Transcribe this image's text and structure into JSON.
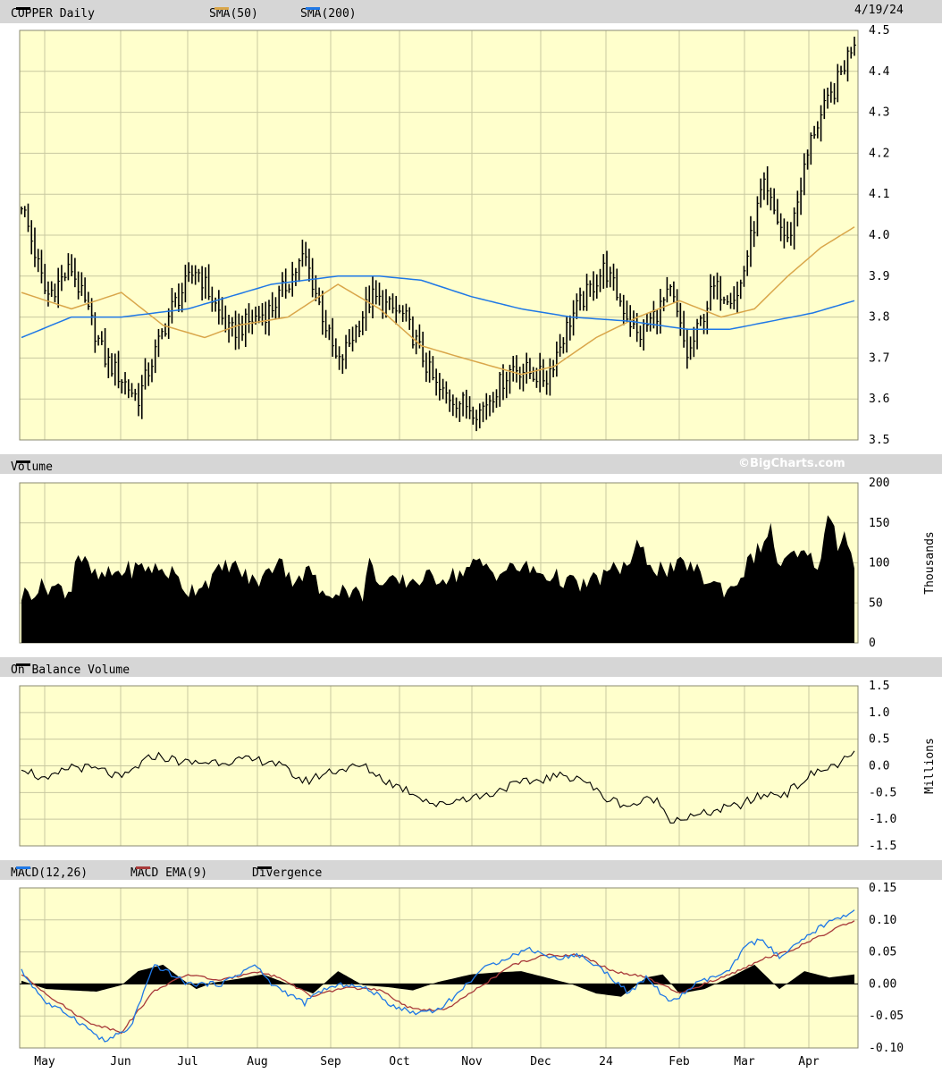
{
  "header": {
    "title": "COPPER Daily",
    "sma50_label": "SMA(50)",
    "sma200_label": "SMA(200)",
    "date": "4/19/24"
  },
  "volume_header": {
    "label": "Volume",
    "credit": "©BigCharts.com"
  },
  "obv_header": {
    "label": "On Balance Volume"
  },
  "macd_header": {
    "macd_label": "MACD(12,26)",
    "ema_label": "MACD EMA(9)",
    "div_label": "Divergence"
  },
  "colors": {
    "background": "#ffffcc",
    "grid": "#c8c8a0",
    "price": "#000000",
    "sma50": "#d9a64a",
    "sma200": "#1f78e6",
    "macd": "#1f78e6",
    "macd_ema": "#a83a3a",
    "divergence": "#000000"
  },
  "chart_data": [
    {
      "type": "bar",
      "title": "COPPER Daily",
      "ylim": [
        3.5,
        4.5
      ],
      "yticks": [
        "4.5",
        "4.4",
        "4.3",
        "4.2",
        "4.1",
        "4.0",
        "3.9",
        "3.8",
        "3.7",
        "3.6",
        "3.5"
      ],
      "xlabels": [
        "May",
        "Jun",
        "Jul",
        "Aug",
        "Sep",
        "Oct",
        "Nov",
        "Dec",
        "24",
        "Feb",
        "Mar",
        "Apr"
      ],
      "anchors": {
        "x": [
          0,
          0.03,
          0.06,
          0.1,
          0.14,
          0.18,
          0.21,
          0.25,
          0.3,
          0.34,
          0.38,
          0.42,
          0.46,
          0.5,
          0.55,
          0.59,
          0.63,
          0.66,
          0.7,
          0.74,
          0.78,
          0.8,
          0.83,
          0.86,
          0.89,
          0.92,
          0.95,
          0.975,
          1
        ],
        "close": [
          4.08,
          3.85,
          3.92,
          3.7,
          3.6,
          3.82,
          3.92,
          3.76,
          3.82,
          3.95,
          3.68,
          3.85,
          3.8,
          3.62,
          3.57,
          3.68,
          3.65,
          3.8,
          3.92,
          3.75,
          3.86,
          3.7,
          3.87,
          3.85,
          4.12,
          3.98,
          4.25,
          4.35,
          4.48
        ]
      },
      "series": [
        {
          "name": "SMA(50)",
          "x": [
            0,
            0.06,
            0.12,
            0.17,
            0.22,
            0.26,
            0.32,
            0.38,
            0.43,
            0.48,
            0.53,
            0.6,
            0.64,
            0.69,
            0.74,
            0.79,
            0.84,
            0.88,
            0.92,
            0.96,
            1
          ],
          "values": [
            3.86,
            3.82,
            3.86,
            3.78,
            3.75,
            3.78,
            3.8,
            3.88,
            3.82,
            3.73,
            3.7,
            3.66,
            3.68,
            3.75,
            3.8,
            3.84,
            3.8,
            3.82,
            3.9,
            3.97,
            4.02
          ]
        },
        {
          "name": "SMA(200)",
          "x": [
            0,
            0.06,
            0.12,
            0.2,
            0.3,
            0.38,
            0.43,
            0.48,
            0.54,
            0.6,
            0.66,
            0.73,
            0.8,
            0.85,
            0.9,
            0.95,
            1
          ],
          "values": [
            3.75,
            3.8,
            3.8,
            3.82,
            3.88,
            3.9,
            3.9,
            3.89,
            3.85,
            3.82,
            3.8,
            3.79,
            3.77,
            3.77,
            3.79,
            3.81,
            3.84
          ]
        }
      ]
    },
    {
      "type": "area",
      "title": "Volume",
      "ylabel": "Thousands",
      "ylim": [
        0,
        200
      ],
      "yticks": [
        "200",
        "150",
        "100",
        "50",
        "0"
      ],
      "anchors": {
        "x": [
          0,
          0.03,
          0.06,
          0.065,
          0.09,
          0.12,
          0.15,
          0.18,
          0.2,
          0.23,
          0.25,
          0.28,
          0.3,
          0.31,
          0.32,
          0.35,
          0.36,
          0.38,
          0.41,
          0.42,
          0.43,
          0.45,
          0.48,
          0.52,
          0.55,
          0.57,
          0.6,
          0.63,
          0.65,
          0.67,
          0.7,
          0.73,
          0.74,
          0.76,
          0.78,
          0.8,
          0.82,
          0.85,
          0.9,
          0.91,
          0.93,
          0.96,
          0.97,
          0.98,
          0.99,
          1
        ],
        "values": [
          60,
          72,
          65,
          115,
          80,
          90,
          95,
          88,
          65,
          82,
          100,
          75,
          90,
          115,
          80,
          90,
          55,
          70,
          60,
          110,
          70,
          75,
          80,
          85,
          100,
          88,
          95,
          85,
          80,
          70,
          85,
          100,
          120,
          95,
          90,
          100,
          80,
          65,
          140,
          95,
          110,
          100,
          175,
          120,
          140,
          100
        ]
      }
    },
    {
      "type": "line",
      "title": "On Balance Volume",
      "ylabel": "Millions",
      "ylim": [
        -1.5,
        1.5
      ],
      "yticks": [
        "1.5",
        "1.0",
        "0.5",
        "0.0",
        "-0.5",
        "-1.0",
        "-1.5"
      ],
      "x": [
        0,
        0.03,
        0.06,
        0.1,
        0.12,
        0.14,
        0.16,
        0.2,
        0.25,
        0.3,
        0.34,
        0.37,
        0.41,
        0.44,
        0.47,
        0.5,
        0.53,
        0.56,
        0.58,
        0.61,
        0.64,
        0.67,
        0.7,
        0.73,
        0.76,
        0.78,
        0.81,
        0.83,
        0.86,
        0.89,
        0.92,
        0.95,
        0.975,
        1
      ],
      "values": [
        0,
        -0.3,
        0,
        -0.1,
        -0.25,
        0,
        0.2,
        0.05,
        0.1,
        0.1,
        -0.3,
        -0.1,
        0,
        -0.3,
        -0.5,
        -0.75,
        -0.6,
        -0.55,
        -0.4,
        -0.3,
        -0.2,
        -0.2,
        -0.6,
        -0.75,
        -0.6,
        -1.0,
        -0.95,
        -0.85,
        -0.75,
        -0.55,
        -0.5,
        -0.15,
        0,
        0.2
      ]
    },
    {
      "type": "line",
      "title": "MACD(12,26)",
      "ylim": [
        -0.1,
        0.15
      ],
      "yticks": [
        "0.15",
        "0.10",
        "0.05",
        "0.00",
        "-0.05",
        "-0.10"
      ],
      "series": [
        {
          "name": "MACD(12,26)",
          "x": [
            0,
            0.03,
            0.06,
            0.1,
            0.13,
            0.16,
            0.2,
            0.24,
            0.28,
            0.3,
            0.34,
            0.36,
            0.39,
            0.42,
            0.44,
            0.47,
            0.5,
            0.52,
            0.55,
            0.58,
            0.61,
            0.64,
            0.67,
            0.7,
            0.73,
            0.75,
            0.78,
            0.81,
            0.85,
            0.87,
            0.89,
            0.91,
            0.93,
            0.96,
            1
          ],
          "values": [
            0.02,
            -0.03,
            -0.05,
            -0.09,
            -0.07,
            0.03,
            0.0,
            0.0,
            0.03,
            0.0,
            -0.03,
            -0.01,
            0.0,
            -0.01,
            -0.03,
            -0.045,
            -0.04,
            -0.02,
            0.02,
            0.04,
            0.055,
            0.04,
            0.045,
            0.02,
            -0.015,
            0.01,
            -0.03,
            0.0,
            0.02,
            0.06,
            0.07,
            0.04,
            0.06,
            0.09,
            0.115
          ]
        },
        {
          "name": "MACD EMA(9)",
          "x": [
            0,
            0.04,
            0.08,
            0.12,
            0.16,
            0.2,
            0.24,
            0.28,
            0.31,
            0.35,
            0.39,
            0.43,
            0.47,
            0.51,
            0.55,
            0.59,
            0.63,
            0.67,
            0.71,
            0.75,
            0.79,
            0.83,
            0.86,
            0.89,
            0.92,
            0.96,
            1
          ],
          "values": [
            0.015,
            -0.025,
            -0.06,
            -0.075,
            -0.01,
            0.015,
            0.005,
            0.02,
            0.01,
            -0.02,
            -0.005,
            -0.01,
            -0.04,
            -0.04,
            -0.005,
            0.03,
            0.045,
            0.045,
            0.02,
            0.01,
            -0.015,
            0.005,
            0.02,
            0.04,
            0.05,
            0.075,
            0.1
          ]
        },
        {
          "name": "Divergence",
          "x": [
            0,
            0.03,
            0.06,
            0.09,
            0.12,
            0.14,
            0.17,
            0.19,
            0.21,
            0.23,
            0.26,
            0.29,
            0.32,
            0.35,
            0.38,
            0.41,
            0.44,
            0.47,
            0.5,
            0.54,
            0.57,
            0.6,
            0.63,
            0.66,
            0.69,
            0.72,
            0.75,
            0.77,
            0.79,
            0.82,
            0.85,
            0.88,
            0.91,
            0.94,
            0.97,
            1
          ],
          "values": [
            0.005,
            -0.008,
            -0.01,
            -0.012,
            -0.002,
            0.02,
            0.03,
            0.01,
            -0.008,
            0.002,
            0.008,
            0.015,
            0.0,
            -0.015,
            0.02,
            -0.002,
            -0.005,
            -0.01,
            0.003,
            0.015,
            0.018,
            0.02,
            0.01,
            0.0,
            -0.015,
            -0.02,
            0.01,
            0.015,
            -0.015,
            -0.008,
            0.01,
            0.03,
            -0.008,
            0.02,
            0.01,
            0.015
          ]
        }
      ]
    }
  ]
}
